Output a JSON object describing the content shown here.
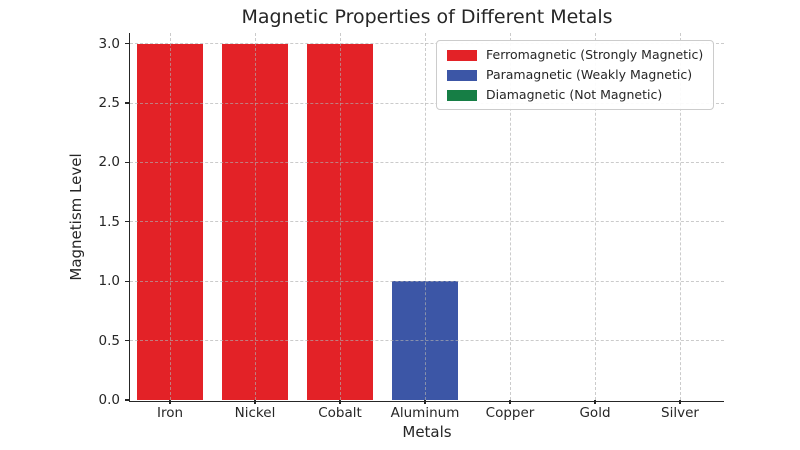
{
  "chart_data": {
    "type": "bar",
    "title": "Magnetic Properties of Different Metals",
    "xlabel": "Metals",
    "ylabel": "Magnetism Level",
    "categories": [
      "Iron",
      "Nickel",
      "Cobalt",
      "Aluminum",
      "Copper",
      "Gold",
      "Silver"
    ],
    "values": [
      3,
      3,
      3,
      1,
      0,
      0,
      0
    ],
    "bar_colors": [
      "#e32227",
      "#e32227",
      "#e32227",
      "#3c56a6",
      "#167e45",
      "#167e45",
      "#167e45"
    ],
    "groups": [
      {
        "category": "Iron",
        "value": 3,
        "group": "Ferromagnetic"
      },
      {
        "category": "Nickel",
        "value": 3,
        "group": "Ferromagnetic"
      },
      {
        "category": "Cobalt",
        "value": 3,
        "group": "Ferromagnetic"
      },
      {
        "category": "Aluminum",
        "value": 1,
        "group": "Paramagnetic"
      },
      {
        "category": "Copper",
        "value": 0,
        "group": "Diamagnetic"
      },
      {
        "category": "Gold",
        "value": 0,
        "group": "Diamagnetic"
      },
      {
        "category": "Silver",
        "value": 0,
        "group": "Diamagnetic"
      }
    ],
    "legend": {
      "position": "upper right",
      "entries": [
        {
          "label": "Ferromagnetic (Strongly Magnetic)",
          "color": "#e32227"
        },
        {
          "label": "Paramagnetic (Weakly Magnetic)",
          "color": "#3c56a6"
        },
        {
          "label": "Diamagnetic (Not Magnetic)",
          "color": "#167e45"
        }
      ]
    },
    "ylim": [
      0,
      3.09
    ],
    "yticks": [
      "0.0",
      "0.5",
      "1.0",
      "1.5",
      "2.0",
      "2.5",
      "3.0"
    ],
    "grid": {
      "on": true,
      "style": "dashed",
      "color": "#bbbbbb",
      "axes": "both"
    },
    "colors": {
      "text": "#262626",
      "spine": "#262626",
      "background": "#ffffff"
    }
  }
}
